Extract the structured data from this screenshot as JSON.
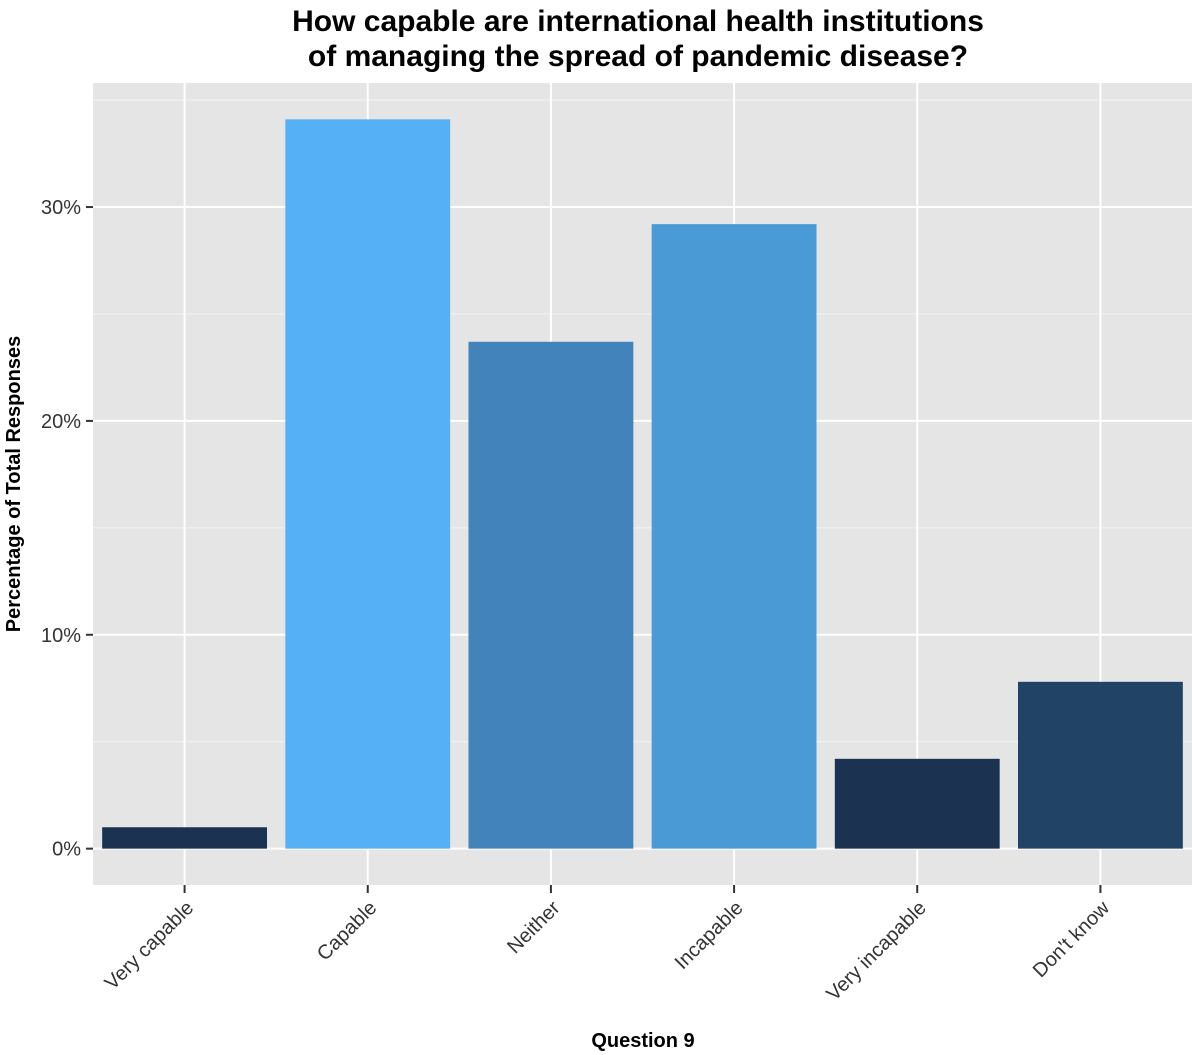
{
  "chart_data": {
    "type": "bar",
    "title": "How capable are international health institutions\nof managing the spread of pandemic disease?",
    "xlabel": "Question 9",
    "ylabel": "Percentage of Total Responses",
    "categories": [
      "Very capable",
      "Capable",
      "Neither",
      "Incapable",
      "Very incapable",
      "Don't know"
    ],
    "values": [
      1.0,
      34.1,
      23.7,
      29.2,
      4.2,
      7.8
    ],
    "bar_colors": [
      "#1b3350",
      "#55b0f6",
      "#4283bb",
      "#4a9ad6",
      "#1b3350",
      "#214466"
    ],
    "yticks": [
      0,
      10,
      20,
      30
    ],
    "ytick_labels": [
      "0%",
      "10%",
      "20%",
      "30%"
    ],
    "ylim": [
      -1.7,
      35.8
    ],
    "grid": true,
    "panel_color": "#e5e5e5",
    "grid_color": "#ffffff"
  }
}
